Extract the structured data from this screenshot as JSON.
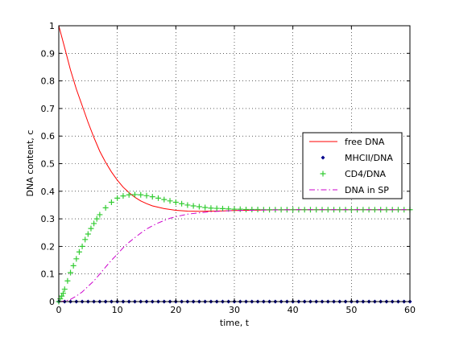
{
  "chart_data": {
    "type": "line",
    "xlabel": "time, t",
    "ylabel": "DNA content, c",
    "xlim": [
      0,
      60
    ],
    "ylim": [
      0,
      1
    ],
    "x_ticks": [
      0,
      10,
      20,
      30,
      40,
      50,
      60
    ],
    "y_ticks": [
      0,
      0.1,
      0.2,
      0.3,
      0.4,
      0.5,
      0.6,
      0.7,
      0.8,
      0.9,
      1
    ],
    "grid": true,
    "legend_position": "right-middle",
    "series": [
      {
        "name": "free DNA",
        "style": "solid",
        "color": "#ff0000",
        "x": [
          0,
          1,
          2,
          3,
          4,
          5,
          6,
          7,
          8,
          9,
          10,
          11,
          12,
          13,
          14,
          15,
          16,
          18,
          20,
          22,
          24,
          26,
          28,
          30,
          35,
          40,
          45,
          50,
          55,
          60
        ],
        "y": [
          1.0,
          0.92,
          0.84,
          0.77,
          0.71,
          0.65,
          0.595,
          0.545,
          0.505,
          0.47,
          0.44,
          0.415,
          0.395,
          0.378,
          0.365,
          0.355,
          0.347,
          0.337,
          0.331,
          0.328,
          0.327,
          0.328,
          0.329,
          0.33,
          0.332,
          0.333,
          0.333,
          0.333,
          0.333,
          0.333
        ]
      },
      {
        "name": "MHCII/DNA",
        "style": "dots",
        "color": "#00008b",
        "x": [
          0,
          1,
          2,
          3,
          4,
          5,
          6,
          7,
          8,
          9,
          10,
          11,
          12,
          13,
          14,
          15,
          16,
          17,
          18,
          19,
          20,
          21,
          22,
          23,
          24,
          25,
          26,
          27,
          28,
          29,
          30,
          31,
          32,
          33,
          34,
          35,
          36,
          37,
          38,
          39,
          40,
          41,
          42,
          43,
          44,
          45,
          46,
          47,
          48,
          49,
          50,
          51,
          52,
          53,
          54,
          55,
          56,
          57,
          58,
          59,
          60
        ],
        "y": [
          0,
          0,
          0,
          0,
          0,
          0,
          0,
          0,
          0,
          0,
          0,
          0,
          0,
          0,
          0,
          0,
          0,
          0,
          0,
          0,
          0,
          0,
          0,
          0,
          0,
          0,
          0,
          0,
          0,
          0,
          0,
          0,
          0,
          0,
          0,
          0,
          0,
          0,
          0,
          0,
          0,
          0,
          0,
          0,
          0,
          0,
          0,
          0,
          0,
          0,
          0,
          0,
          0,
          0,
          0,
          0,
          0,
          0,
          0,
          0,
          0
        ]
      },
      {
        "name": "CD4/DNA",
        "style": "plus",
        "color": "#33cc33",
        "x": [
          0,
          0.25,
          0.5,
          0.75,
          1,
          1.5,
          2,
          2.5,
          3,
          3.5,
          4,
          4.5,
          5,
          5.5,
          6,
          6.5,
          7,
          8,
          9,
          10,
          11,
          12,
          13,
          14,
          15,
          16,
          17,
          18,
          19,
          20,
          21,
          22,
          23,
          24,
          25,
          26,
          27,
          28,
          29,
          30,
          31,
          32,
          33,
          34,
          35,
          36,
          37,
          38,
          39,
          40,
          41,
          42,
          43,
          44,
          45,
          46,
          47,
          48,
          49,
          50,
          51,
          52,
          53,
          54,
          55,
          56,
          57,
          58,
          59,
          60
        ],
        "y": [
          0,
          0.01,
          0.02,
          0.03,
          0.045,
          0.075,
          0.105,
          0.13,
          0.155,
          0.18,
          0.2,
          0.225,
          0.245,
          0.265,
          0.283,
          0.3,
          0.315,
          0.34,
          0.36,
          0.375,
          0.383,
          0.387,
          0.388,
          0.387,
          0.384,
          0.38,
          0.375,
          0.37,
          0.365,
          0.36,
          0.355,
          0.35,
          0.347,
          0.344,
          0.341,
          0.339,
          0.338,
          0.337,
          0.336,
          0.335,
          0.335,
          0.334,
          0.334,
          0.334,
          0.333,
          0.333,
          0.333,
          0.333,
          0.333,
          0.333,
          0.333,
          0.333,
          0.333,
          0.333,
          0.333,
          0.333,
          0.333,
          0.333,
          0.333,
          0.333,
          0.333,
          0.333,
          0.333,
          0.333,
          0.333,
          0.333,
          0.333,
          0.333,
          0.333,
          0.333
        ]
      },
      {
        "name": "DNA in SP",
        "style": "dashdot",
        "color": "#cc00cc",
        "x": [
          0,
          1,
          2,
          3,
          4,
          5,
          6,
          7,
          8,
          9,
          10,
          11,
          12,
          13,
          14,
          15,
          16,
          17,
          18,
          19,
          20,
          22,
          24,
          26,
          28,
          30,
          35,
          40,
          45,
          50,
          55,
          60
        ],
        "y": [
          0,
          0.002,
          0.008,
          0.02,
          0.035,
          0.055,
          0.075,
          0.1,
          0.125,
          0.15,
          0.172,
          0.195,
          0.215,
          0.232,
          0.248,
          0.263,
          0.275,
          0.285,
          0.294,
          0.302,
          0.308,
          0.317,
          0.322,
          0.326,
          0.328,
          0.33,
          0.332,
          0.333,
          0.333,
          0.333,
          0.333,
          0.333
        ]
      }
    ]
  }
}
